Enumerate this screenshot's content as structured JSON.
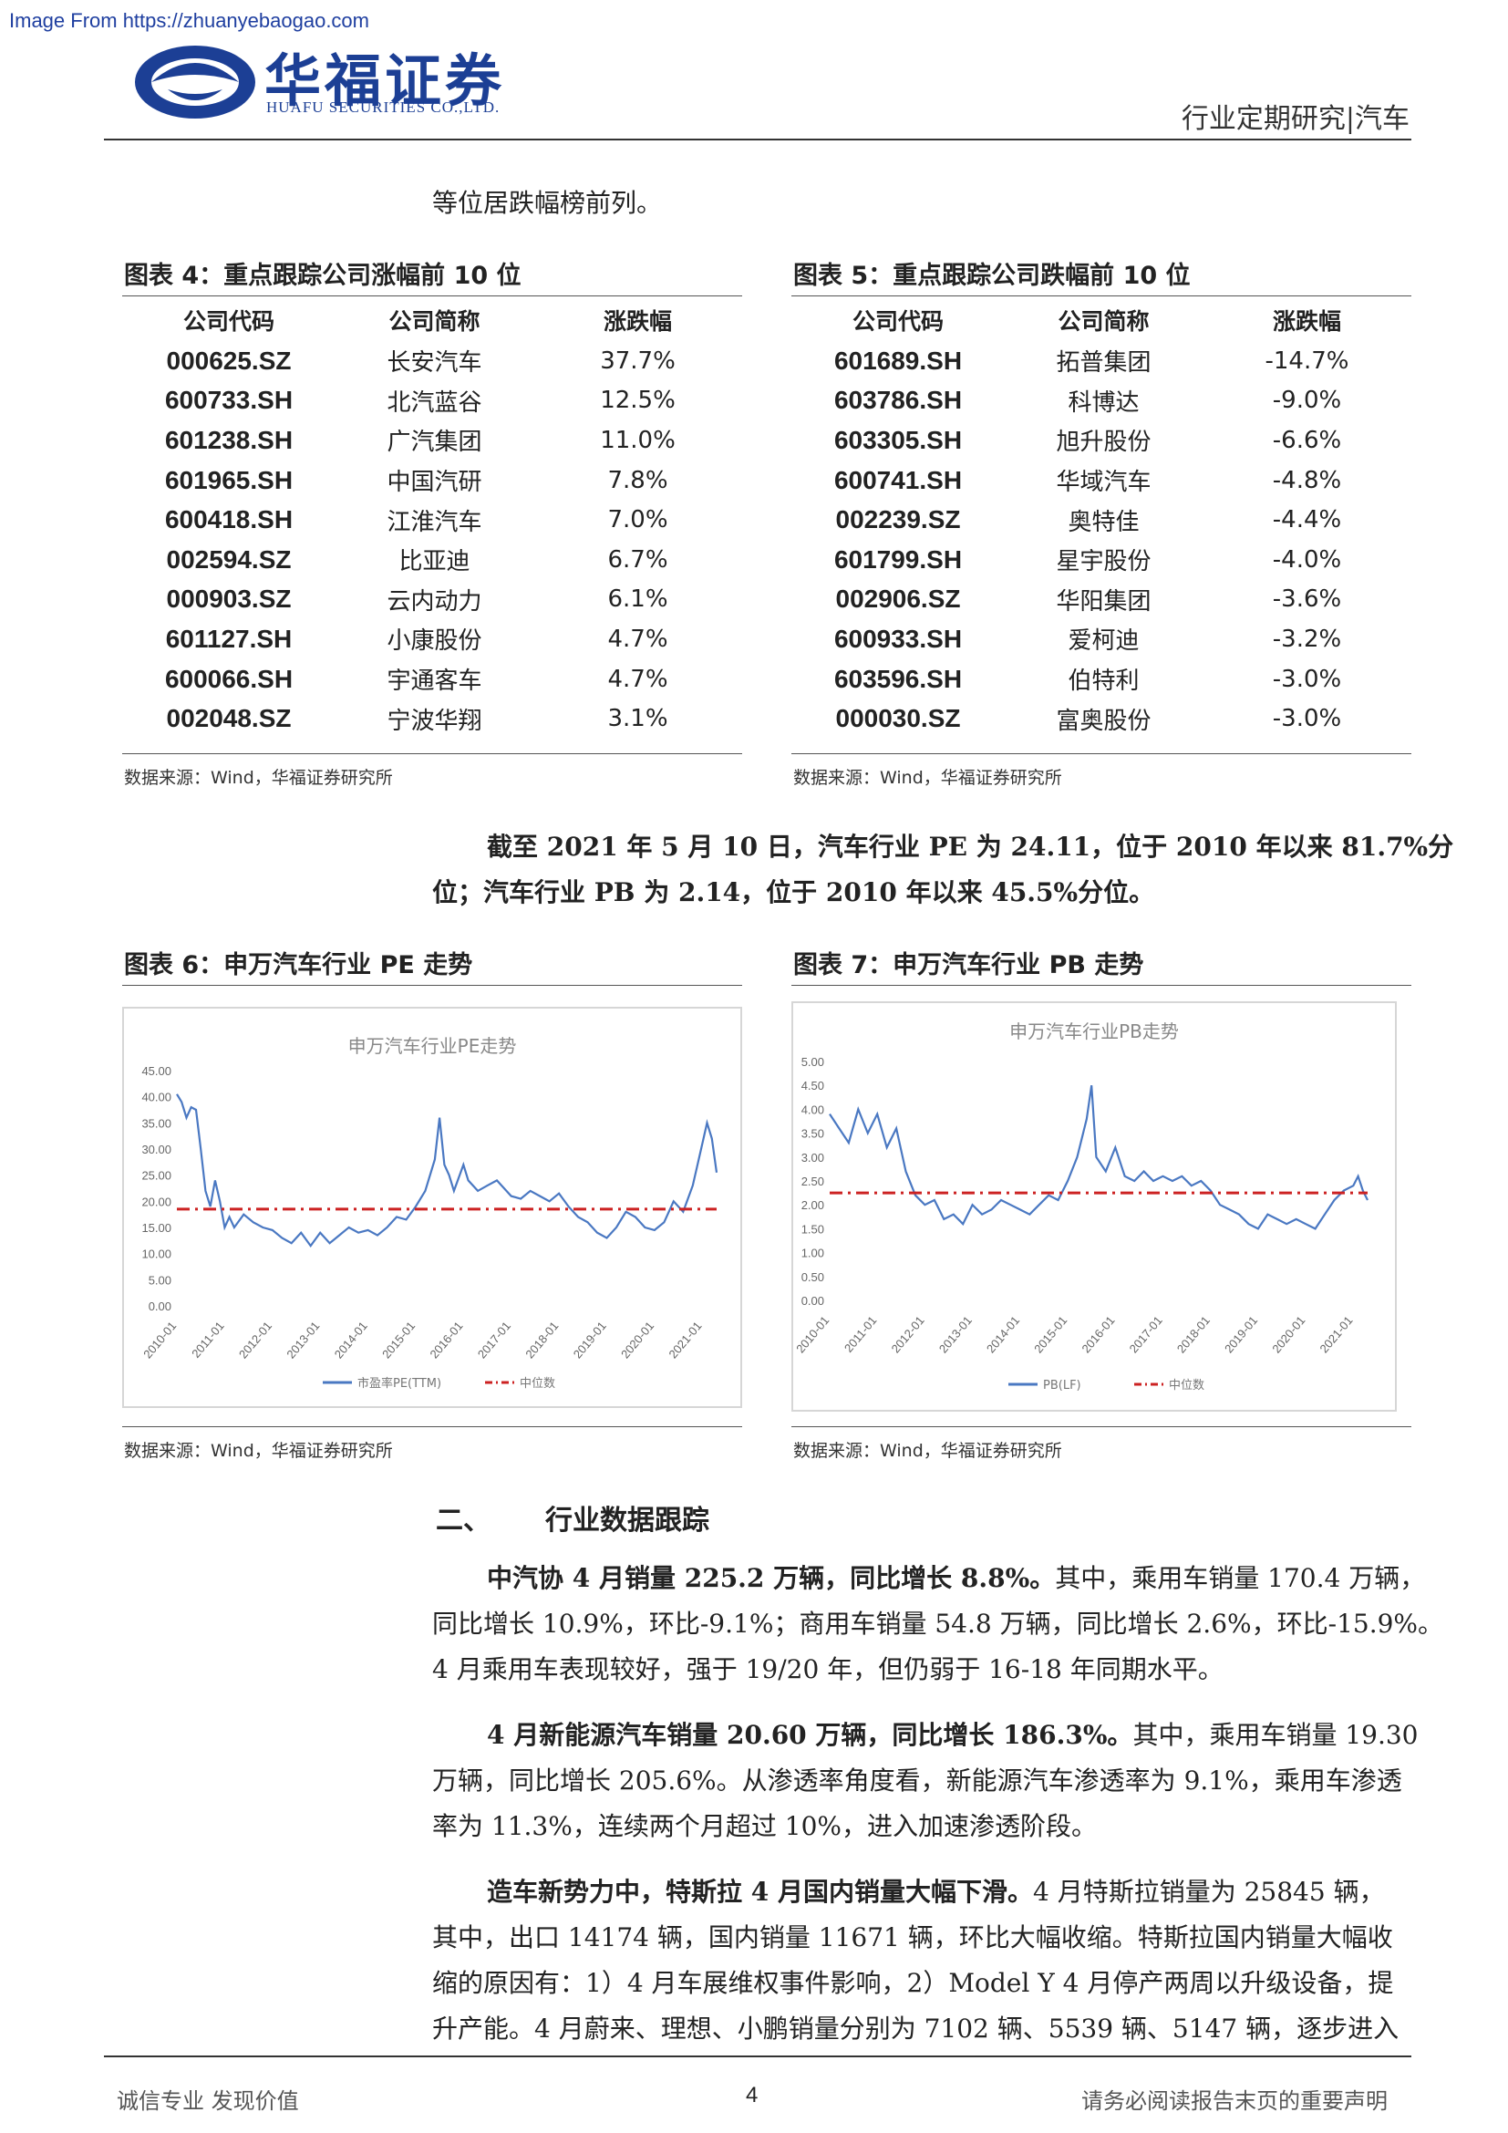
{
  "watermark": "Image From https://zhuanyebaogao.com",
  "header": {
    "company_cn": "华福证券",
    "company_en": "HUAFU SECURITIES CO.,LTD.",
    "right": "行业定期研究|汽车"
  },
  "intro_line": "等位居跌幅榜前列。",
  "fig4": {
    "title": "图表 4：重点跟踪公司涨幅前 10 位",
    "columns": [
      "公司代码",
      "公司简称",
      "涨跌幅"
    ],
    "rows": [
      [
        "000625.SZ",
        "长安汽车",
        "37.7%"
      ],
      [
        "600733.SH",
        "北汽蓝谷",
        "12.5%"
      ],
      [
        "601238.SH",
        "广汽集团",
        "11.0%"
      ],
      [
        "601965.SH",
        "中国汽研",
        "7.8%"
      ],
      [
        "600418.SH",
        "江淮汽车",
        "7.0%"
      ],
      [
        "002594.SZ",
        "比亚迪",
        "6.7%"
      ],
      [
        "000903.SZ",
        "云内动力",
        "6.1%"
      ],
      [
        "601127.SH",
        "小康股份",
        "4.7%"
      ],
      [
        "600066.SH",
        "宇通客车",
        "4.7%"
      ],
      [
        "002048.SZ",
        "宁波华翔",
        "3.1%"
      ]
    ],
    "source": "数据来源：Wind，华福证券研究所"
  },
  "fig5": {
    "title": "图表 5：重点跟踪公司跌幅前 10 位",
    "columns": [
      "公司代码",
      "公司简称",
      "涨跌幅"
    ],
    "rows": [
      [
        "601689.SH",
        "拓普集团",
        "-14.7%"
      ],
      [
        "603786.SH",
        "科博达",
        "-9.0%"
      ],
      [
        "603305.SH",
        "旭升股份",
        "-6.6%"
      ],
      [
        "600741.SH",
        "华域汽车",
        "-4.8%"
      ],
      [
        "002239.SZ",
        "奥特佳",
        "-4.4%"
      ],
      [
        "601799.SH",
        "星宇股份",
        "-4.0%"
      ],
      [
        "002906.SZ",
        "华阳集团",
        "-3.6%"
      ],
      [
        "600933.SH",
        "爱柯迪",
        "-3.2%"
      ],
      [
        "603596.SH",
        "伯特利",
        "-3.0%"
      ],
      [
        "000030.SZ",
        "富奥股份",
        "-3.0%"
      ]
    ],
    "source": "数据来源：Wind，华福证券研究所"
  },
  "valuation_para": {
    "line1": "截至 2021 年 5 月 10 日，汽车行业 PE 为 24.11，位于 2010 年以来 81.7%分",
    "line2": "位；汽车行业 PB 为 2.14，位于 2010 年以来 45.5%分位。"
  },
  "fig6": {
    "title": "图表 6：申万汽车行业 PE 走势",
    "source": "数据来源：Wind，华福证券研究所"
  },
  "fig7": {
    "title": "图表 7：申万汽车行业 PB 走势",
    "source": "数据来源：Wind，华福证券研究所"
  },
  "chart_data": [
    {
      "type": "line",
      "title": "申万汽车行业PE走势",
      "ylim": [
        0,
        45
      ],
      "yticks": [
        "45.00",
        "40.00",
        "35.00",
        "30.00",
        "25.00",
        "20.00",
        "15.00",
        "10.00",
        "5.00",
        "0.00"
      ],
      "xticks": [
        "2010-01",
        "2011-01",
        "2012-01",
        "2013-01",
        "2014-01",
        "2015-01",
        "2016-01",
        "2017-01",
        "2018-01",
        "2019-01",
        "2020-01",
        "2021-01"
      ],
      "series": [
        {
          "name": "市盈率PE(TTM)",
          "color": "#4a78c2",
          "x": [
            2010.0,
            2010.1,
            2010.2,
            2010.3,
            2010.4,
            2010.5,
            2010.6,
            2010.7,
            2010.8,
            2010.9,
            2011.0,
            2011.1,
            2011.2,
            2011.4,
            2011.6,
            2011.8,
            2012.0,
            2012.2,
            2012.4,
            2012.6,
            2012.8,
            2013.0,
            2013.2,
            2013.4,
            2013.6,
            2013.8,
            2014.0,
            2014.2,
            2014.4,
            2014.6,
            2014.8,
            2015.0,
            2015.2,
            2015.4,
            2015.5,
            2015.6,
            2015.7,
            2015.8,
            2016.0,
            2016.1,
            2016.3,
            2016.5,
            2016.7,
            2017.0,
            2017.2,
            2017.4,
            2017.6,
            2017.8,
            2018.0,
            2018.2,
            2018.4,
            2018.6,
            2018.8,
            2019.0,
            2019.2,
            2019.4,
            2019.6,
            2019.8,
            2020.0,
            2020.2,
            2020.4,
            2020.6,
            2020.8,
            2021.0,
            2021.1,
            2021.2,
            2021.3
          ],
          "values": [
            40.5,
            39,
            36,
            38,
            37.5,
            30,
            22,
            19,
            24,
            20,
            15,
            17,
            15,
            17.5,
            16,
            15,
            14.5,
            13,
            12,
            14,
            11.5,
            14,
            12,
            13.5,
            15,
            14,
            14.5,
            13.5,
            15,
            17,
            16.5,
            19,
            22,
            28,
            36,
            27,
            25,
            22,
            27,
            24,
            22,
            23,
            24,
            21,
            20.5,
            22,
            21,
            20,
            21.5,
            19,
            17,
            16,
            14,
            13,
            15,
            18,
            17,
            15,
            14.5,
            16,
            20,
            18,
            23,
            31,
            35,
            32,
            25.5
          ]
        },
        {
          "name": "中位数",
          "color": "#cc2222",
          "x": [
            2010.0,
            2021.3
          ],
          "values": [
            18.5,
            18.5
          ]
        }
      ]
    },
    {
      "type": "line",
      "title": "申万汽车行业PB走势",
      "ylim": [
        0,
        5
      ],
      "yticks": [
        "5.00",
        "4.50",
        "4.00",
        "3.50",
        "3.00",
        "2.50",
        "2.00",
        "1.50",
        "1.00",
        "0.50",
        "0.00"
      ],
      "xticks": [
        "2010-01",
        "2011-01",
        "2012-01",
        "2013-01",
        "2014-01",
        "2015-01",
        "2016-01",
        "2017-01",
        "2018-01",
        "2019-01",
        "2020-01",
        "2021-01"
      ],
      "series": [
        {
          "name": "PB(LF)",
          "color": "#4a78c2",
          "x": [
            2010.0,
            2010.2,
            2010.4,
            2010.6,
            2010.8,
            2011.0,
            2011.2,
            2011.4,
            2011.6,
            2011.8,
            2012.0,
            2012.2,
            2012.4,
            2012.6,
            2012.8,
            2013.0,
            2013.2,
            2013.4,
            2013.6,
            2013.8,
            2014.0,
            2014.2,
            2014.4,
            2014.6,
            2014.8,
            2015.0,
            2015.2,
            2015.4,
            2015.5,
            2015.6,
            2015.8,
            2016.0,
            2016.2,
            2016.4,
            2016.6,
            2016.8,
            2017.0,
            2017.2,
            2017.4,
            2017.6,
            2017.8,
            2018.0,
            2018.2,
            2018.4,
            2018.6,
            2018.8,
            2019.0,
            2019.2,
            2019.4,
            2019.6,
            2019.8,
            2020.0,
            2020.2,
            2020.4,
            2020.6,
            2020.8,
            2021.0,
            2021.1,
            2021.2,
            2021.3
          ],
          "values": [
            3.9,
            3.6,
            3.3,
            4.0,
            3.5,
            3.9,
            3.2,
            3.6,
            2.7,
            2.2,
            2.0,
            2.1,
            1.7,
            1.8,
            1.6,
            2.0,
            1.8,
            1.9,
            2.1,
            2.0,
            1.9,
            1.8,
            2.0,
            2.2,
            2.1,
            2.5,
            3.0,
            3.8,
            4.5,
            3.0,
            2.7,
            3.2,
            2.6,
            2.5,
            2.7,
            2.5,
            2.6,
            2.5,
            2.6,
            2.4,
            2.5,
            2.3,
            2.0,
            1.9,
            1.8,
            1.6,
            1.5,
            1.8,
            1.7,
            1.6,
            1.7,
            1.6,
            1.5,
            1.8,
            2.1,
            2.3,
            2.4,
            2.6,
            2.3,
            2.1
          ]
        },
        {
          "name": "中位数",
          "color": "#cc2222",
          "x": [
            2010.0,
            2021.3
          ],
          "values": [
            2.25,
            2.25
          ]
        }
      ]
    }
  ],
  "section2": {
    "num": "二、",
    "title": "行业数据跟踪"
  },
  "para1": {
    "bold": "中汽协 4 月销量 225.2 万辆，同比增长 8.8%。",
    "rest1": "其中，乘用车销量 170.4 万辆，",
    "line2": "同比增长 10.9%，环比-9.1%；商用车销量 54.8 万辆，同比增长 2.6%，环比-15.9%。",
    "line3": "4 月乘用车表现较好，强于 19/20 年，但仍弱于 16-18 年同期水平。"
  },
  "para2": {
    "bold": "4 月新能源汽车销量 20.60 万辆，同比增长 186.3%。",
    "rest1": "其中，乘用车销量 19.30",
    "line2": "万辆，同比增长 205.6%。从渗透率角度看，新能源汽车渗透率为 9.1%，乘用车渗透",
    "line3": "率为 11.3%，连续两个月超过 10%，进入加速渗透阶段。"
  },
  "para3": {
    "bold": "造车新势力中，特斯拉 4 月国内销量大幅下滑。",
    "rest1": "4 月特斯拉销量为 25845 辆，",
    "line2": "其中，出口 14174 辆，国内销量 11671 辆，环比大幅收缩。特斯拉国内销量大幅收",
    "line3": "缩的原因有：1）4 月车展维权事件影响，2）Model Y 4 月停产两周以升级设备，提",
    "line4": "升产能。4 月蔚来、理想、小鹏销量分别为 7102 辆、5539 辆、5147 辆，逐步进入"
  },
  "footer": {
    "left": "诚信专业  发现价值",
    "page": "4",
    "right": "请务必阅读报告末页的重要声明"
  }
}
